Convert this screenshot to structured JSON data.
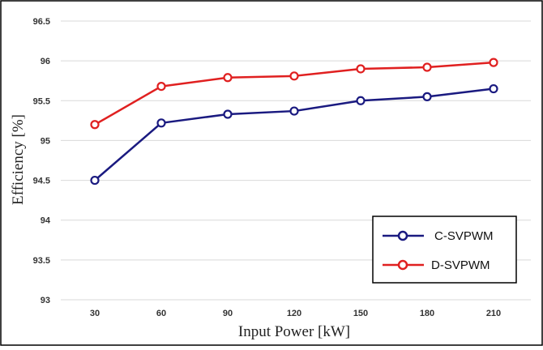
{
  "chart_data": {
    "type": "line",
    "title": "",
    "xlabel": "Input Power [kW]",
    "ylabel": "Efficiency [%]",
    "categories": [
      "30",
      "60",
      "90",
      "120",
      "150",
      "180",
      "210"
    ],
    "ylim": [
      93,
      96.5
    ],
    "yticks": [
      "93",
      "93.5",
      "94",
      "94.5",
      "95",
      "95.5",
      "96",
      "96.5"
    ],
    "grid": true,
    "legend_position": "bottom-right",
    "series": [
      {
        "name": "C-SVPWM",
        "color": "#1a1a80",
        "values": [
          94.5,
          95.22,
          95.33,
          95.37,
          95.5,
          95.55,
          95.65
        ]
      },
      {
        "name": "D-SVPWM",
        "color": "#e02020",
        "values": [
          95.2,
          95.68,
          95.79,
          95.81,
          95.9,
          95.92,
          95.98
        ]
      }
    ]
  }
}
